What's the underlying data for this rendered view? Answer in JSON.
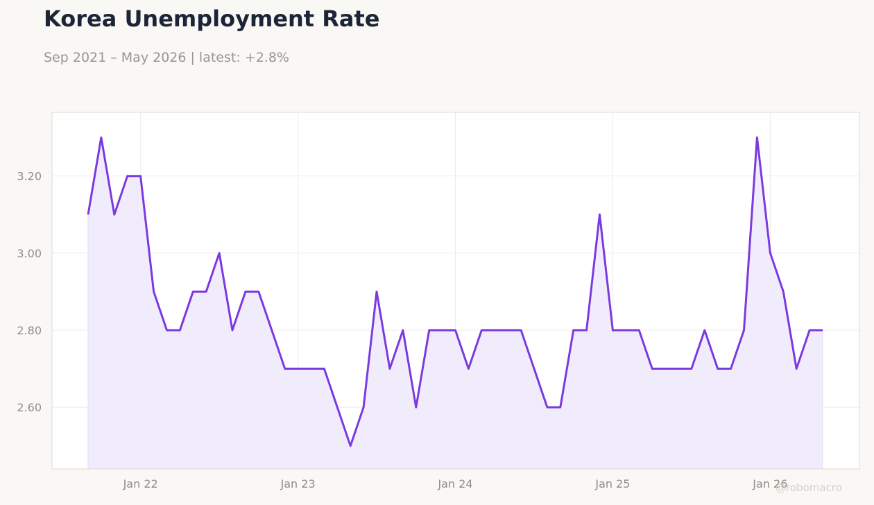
{
  "header": {
    "title": "Korea Unemployment Rate",
    "subtitle": "Sep 2021 – May 2026 | latest: +2.8%"
  },
  "watermark": "@robomacro",
  "colors": {
    "line": "#7b3ae0",
    "fill": "#f1ecfb",
    "grid": "#ececec",
    "plot_background": "#ffffff",
    "page_background": "#f9f8f5"
  },
  "chart_data": {
    "type": "area",
    "title": "Korea Unemployment Rate",
    "xlabel": "",
    "ylabel": "",
    "x_start": "2021-09",
    "x_end": "2026-05",
    "ylim": [
      2.44,
      3.365
    ],
    "y_ticks": [
      2.6,
      2.8,
      3.0,
      3.2
    ],
    "y_tick_labels": [
      "2.60",
      "2.80",
      "3.00",
      "3.20"
    ],
    "x_ticks": [
      "2022-01",
      "2023-01",
      "2024-01",
      "2025-01",
      "2026-01"
    ],
    "x_tick_labels": [
      "Jan 22",
      "Jan 23",
      "Jan 24",
      "Jan 25",
      "Jan 26"
    ],
    "grid": true,
    "legend": "none",
    "series": [
      {
        "x": [
          "2021-09",
          "2021-10",
          "2021-11",
          "2021-12",
          "2022-01",
          "2022-02",
          "2022-03",
          "2022-04",
          "2022-05",
          "2022-06",
          "2022-07",
          "2022-08",
          "2022-09",
          "2022-10",
          "2022-11",
          "2022-12",
          "2023-01",
          "2023-02",
          "2023-03",
          "2023-04",
          "2023-05",
          "2023-06",
          "2023-07",
          "2023-08",
          "2023-09",
          "2023-10",
          "2023-11",
          "2023-12",
          "2024-01",
          "2024-02",
          "2024-03",
          "2024-04",
          "2024-05",
          "2024-06",
          "2024-07",
          "2024-08",
          "2024-09",
          "2024-10",
          "2024-11",
          "2024-12",
          "2025-01",
          "2025-02",
          "2025-03",
          "2025-04",
          "2025-05",
          "2025-06",
          "2025-07",
          "2025-08",
          "2025-09",
          "2025-10",
          "2025-11",
          "2025-12",
          "2026-01",
          "2026-02",
          "2026-03",
          "2026-04",
          "2026-05"
        ],
        "values": [
          3.1,
          3.3,
          3.1,
          3.2,
          3.2,
          2.9,
          2.8,
          2.8,
          2.9,
          2.9,
          3.0,
          2.8,
          2.9,
          2.9,
          2.8,
          2.7,
          2.7,
          2.7,
          2.7,
          2.6,
          2.5,
          2.6,
          2.9,
          2.7,
          2.8,
          2.6,
          2.8,
          2.8,
          2.8,
          2.7,
          2.8,
          2.8,
          2.8,
          2.8,
          2.7,
          2.6,
          2.6,
          2.8,
          2.8,
          3.1,
          2.8,
          2.8,
          2.8,
          2.7,
          2.7,
          2.7,
          2.7,
          2.8,
          2.7,
          2.7,
          2.8,
          3.3,
          3.0,
          2.9,
          2.7,
          2.8,
          2.8
        ]
      }
    ]
  }
}
